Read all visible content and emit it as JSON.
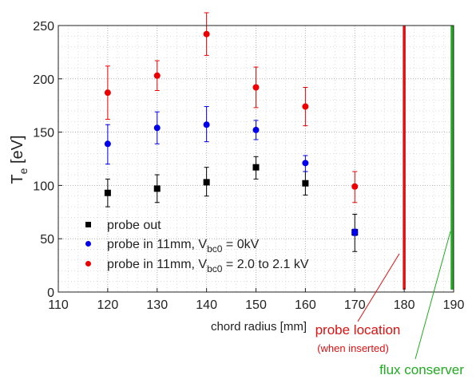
{
  "chart_data": {
    "type": "scatter",
    "xlabel": "chord radius [mm]",
    "ylabel_main": "T",
    "ylabel_sub": "e",
    "ylabel_unit": " [eV]",
    "xlim": [
      110,
      190
    ],
    "ylim": [
      0,
      250
    ],
    "xticks": [
      110,
      120,
      130,
      140,
      150,
      160,
      170,
      180,
      190
    ],
    "yticks": [
      0,
      50,
      100,
      150,
      200,
      250
    ],
    "grid": "dotted",
    "legend_position": "bottom-left",
    "series": [
      {
        "color": "#000000",
        "marker": "square",
        "legend": {
          "prefix": "probe out",
          "sub": "",
          "suffix": ""
        },
        "points": [
          {
            "x": 120,
            "y": 93,
            "lo": 80,
            "hi": 106
          },
          {
            "x": 130,
            "y": 97,
            "lo": 84,
            "hi": 110
          },
          {
            "x": 140,
            "y": 103,
            "lo": 90,
            "hi": 117
          },
          {
            "x": 150,
            "y": 117,
            "lo": 106,
            "hi": 127
          },
          {
            "x": 160,
            "y": 102,
            "lo": 91,
            "hi": 113
          },
          {
            "x": 170,
            "y": 56,
            "lo": 38,
            "hi": 73
          }
        ]
      },
      {
        "color": "#0000ee",
        "marker": "circle",
        "legend": {
          "prefix": "probe in 11mm, V",
          "sub": "bc0",
          "suffix": " = 0kV"
        },
        "points": [
          {
            "x": 120,
            "y": 139,
            "lo": 120,
            "hi": 157
          },
          {
            "x": 130,
            "y": 154,
            "lo": 139,
            "hi": 169
          },
          {
            "x": 140,
            "y": 157,
            "lo": 141,
            "hi": 174
          },
          {
            "x": 150,
            "y": 152,
            "lo": 143,
            "hi": 161
          },
          {
            "x": 160,
            "y": 121,
            "lo": 113,
            "hi": 128
          },
          {
            "x": 170,
            "y": 56,
            "lo": 53,
            "hi": 59
          }
        ]
      },
      {
        "color": "#ee0000",
        "marker": "circle",
        "legend": {
          "prefix": "probe in 11mm, V",
          "sub": "bc0",
          "suffix": " = 2.0 to 2.1 kV"
        },
        "points": [
          {
            "x": 120,
            "y": 187,
            "lo": 162,
            "hi": 212
          },
          {
            "x": 130,
            "y": 203,
            "lo": 189,
            "hi": 217
          },
          {
            "x": 140,
            "y": 242,
            "lo": 222,
            "hi": 262
          },
          {
            "x": 150,
            "y": 192,
            "lo": 173,
            "hi": 211
          },
          {
            "x": 160,
            "y": 174,
            "lo": 156,
            "hi": 192
          },
          {
            "x": 170,
            "y": 99,
            "lo": 84,
            "hi": 113
          }
        ]
      }
    ],
    "vlines": [
      {
        "x": 180,
        "color": "#dd1111"
      },
      {
        "x": 190,
        "color": "#22aa22"
      }
    ],
    "annotations": [
      {
        "text": "probe location",
        "sub": "(when inserted)",
        "color": "#dd1111"
      },
      {
        "text": "flux conserver",
        "sub": "",
        "color": "#22aa22"
      }
    ]
  }
}
